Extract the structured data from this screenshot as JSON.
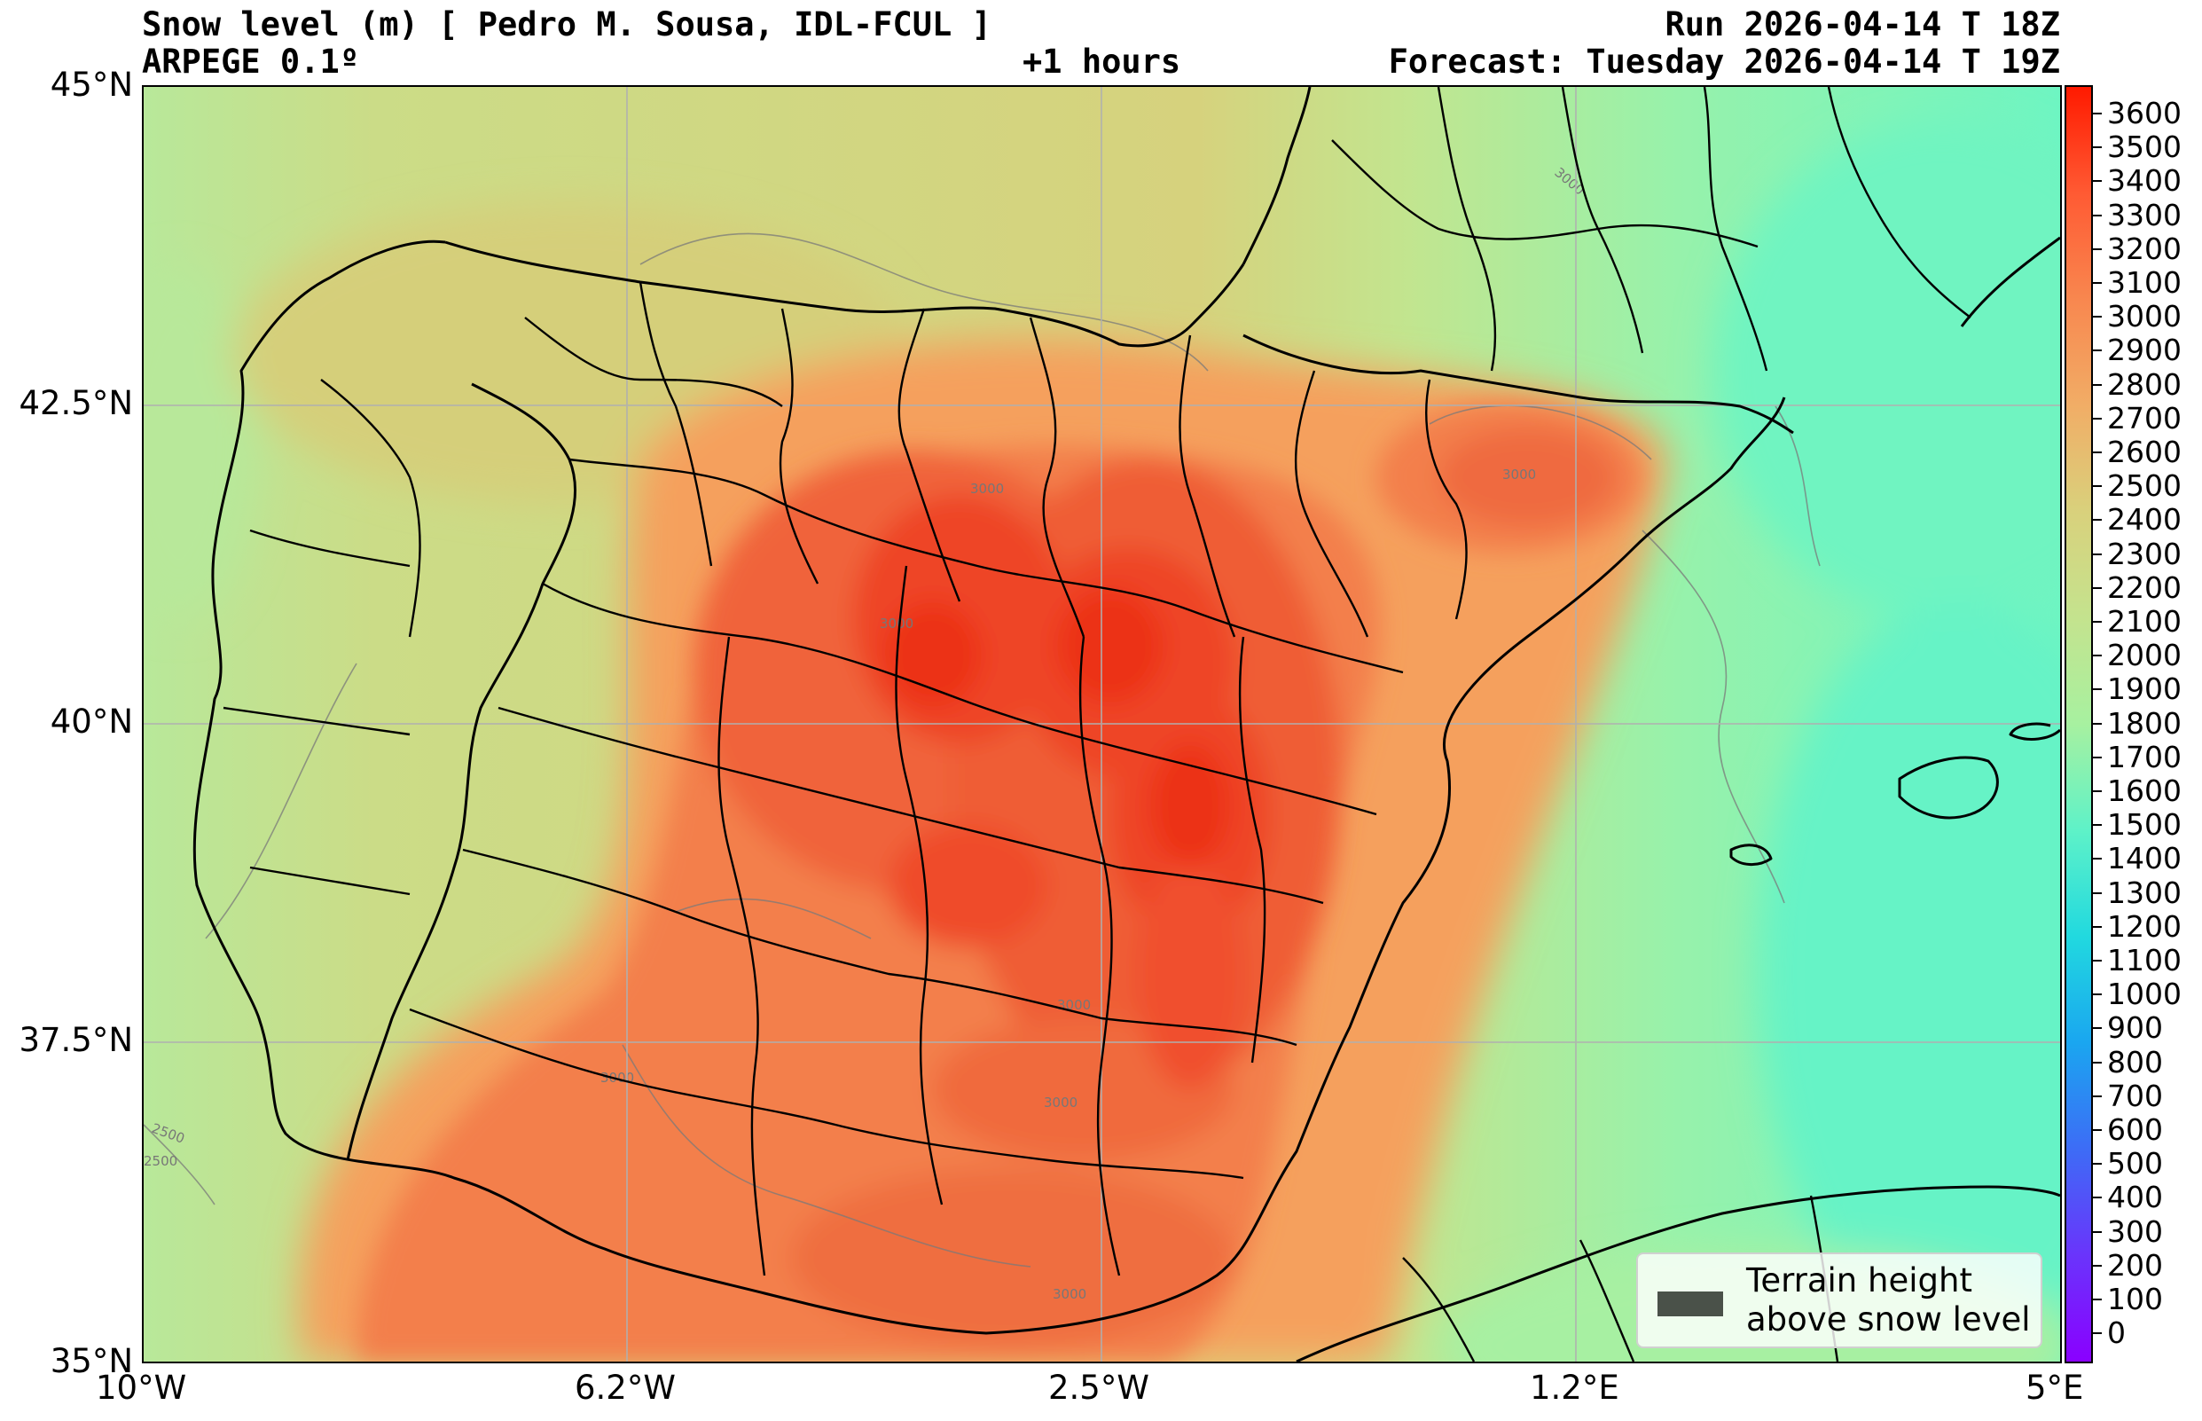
{
  "header": {
    "title": "Snow level (m) [ Pedro M. Sousa, IDL-FCUL ]",
    "model": "ARPEGE 0.1º",
    "lead": "+1 hours",
    "run": "Run 2026-04-14 T 18Z",
    "forecast": "Forecast: Tuesday 2026-04-14 T 19Z"
  },
  "map": {
    "lon_range": [
      -10,
      5
    ],
    "lat_range": [
      35,
      45
    ],
    "x_ticks": [
      "10°W",
      "6.2°W",
      "2.5°W",
      "1.2°E",
      "5°E"
    ],
    "y_ticks": [
      "45°N",
      "42.5°N",
      "40°N",
      "37.5°N",
      "35°N"
    ],
    "contour_labels": [
      "3000",
      "3000",
      "3000",
      "3000",
      "3000",
      "3000",
      "2500",
      "2500",
      "3000",
      "3000"
    ],
    "grid": true
  },
  "colorbar": {
    "ticks": [
      "3600",
      "3500",
      "3400",
      "3300",
      "3200",
      "3100",
      "3000",
      "2900",
      "2800",
      "2700",
      "2600",
      "2500",
      "2400",
      "2300",
      "2200",
      "2100",
      "2000",
      "1900",
      "1800",
      "1700",
      "1600",
      "1500",
      "1400",
      "1300",
      "1200",
      "1100",
      "1000",
      "900",
      "800",
      "700",
      "600",
      "500",
      "400",
      "300",
      "200",
      "100",
      "0"
    ],
    "colors_top_to_bottom": [
      "#ff1a00",
      "#ff5a33",
      "#f8874f",
      "#f1ad66",
      "#d9d17c",
      "#c4e38e",
      "#a7f1a0",
      "#5ef2c8",
      "#21d9df",
      "#1aa6f0",
      "#3d6cf6",
      "#6a34fb",
      "#8a00ff"
    ]
  },
  "legend": {
    "label": "Terrain height\nabove snow level",
    "swatch_color": "#4a5149"
  }
}
